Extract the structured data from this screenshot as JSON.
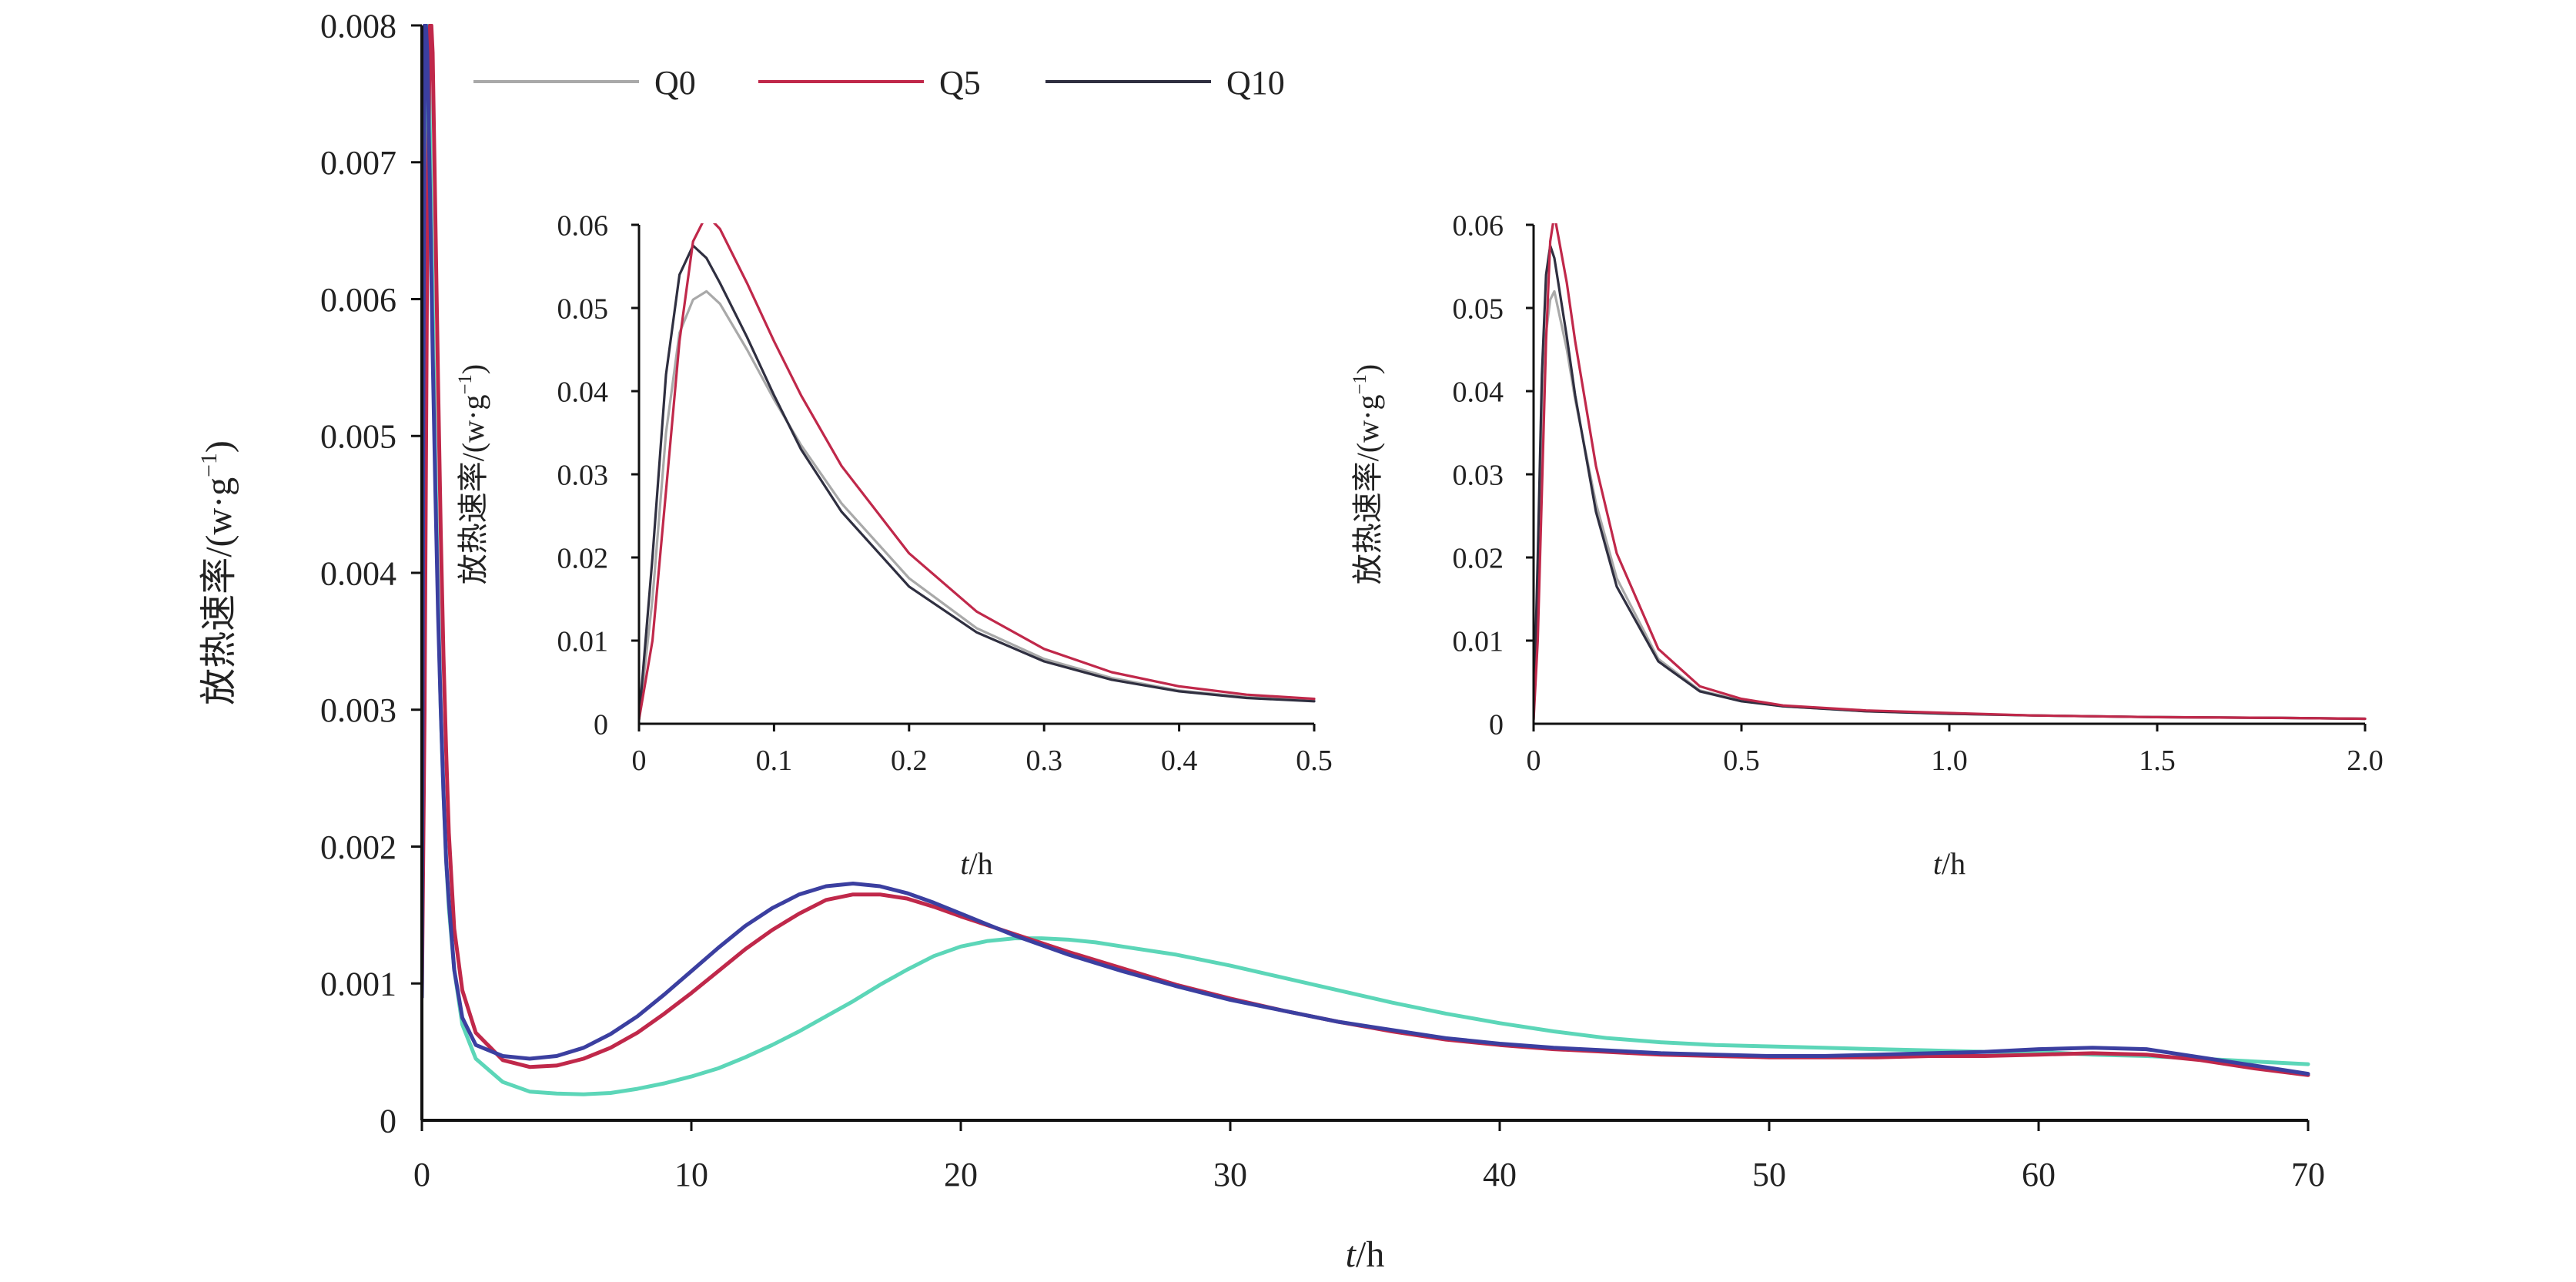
{
  "colors": {
    "Q0": "#a9a9a9",
    "Q0_main": "#5cd6b8",
    "Q5": "#c0284a",
    "Q10": "#2f2f40",
    "Q10_main": "#3b3fa0",
    "axis": "#111111"
  },
  "chart_data": [
    {
      "type": "line",
      "name": "main",
      "title": "",
      "xlabel_italic": "t",
      "xlabel_rest": "/h",
      "ylabel_main": "放热速率/(w·g",
      "ylabel_sup": "−1",
      "ylabel_close": ")",
      "xlim": [
        0,
        70
      ],
      "ylim": [
        0,
        0.008
      ],
      "xticks": [
        0,
        10,
        20,
        30,
        40,
        50,
        60,
        70
      ],
      "xtick_labels": [
        "0",
        "10",
        "20",
        "30",
        "40",
        "50",
        "60",
        "70"
      ],
      "yticks": [
        0,
        0.001,
        0.002,
        0.003,
        0.004,
        0.005,
        0.006,
        0.007,
        0.008
      ],
      "ytick_labels": [
        "0",
        "0.001",
        "0.002",
        "0.003",
        "0.004",
        "0.005",
        "0.006",
        "0.007",
        "0.008"
      ],
      "legend": {
        "placement": "top",
        "entries": [
          "Q0",
          "Q5",
          "Q10"
        ]
      },
      "series": [
        {
          "name": "Q0",
          "x": [
            0.0,
            0.1,
            0.15,
            0.2,
            0.25,
            0.3,
            0.4,
            0.5,
            0.6,
            0.7,
            0.8,
            0.9,
            1.0,
            1.2,
            1.5,
            2,
            3,
            4,
            5,
            6,
            7,
            8,
            9,
            10,
            11,
            12,
            13,
            14,
            15,
            16,
            17,
            18,
            19,
            20,
            21,
            22,
            23,
            24,
            25,
            26,
            28,
            30,
            32,
            34,
            36,
            38,
            40,
            42,
            44,
            46,
            48,
            50,
            52,
            54,
            56,
            58,
            60,
            62,
            64,
            66,
            68,
            70
          ],
          "y": [
            0.0009,
            0.0045,
            0.008,
            0.008,
            0.0078,
            0.0072,
            0.006,
            0.0048,
            0.0038,
            0.003,
            0.0024,
            0.0019,
            0.00155,
            0.0011,
            0.0007,
            0.00045,
            0.00028,
            0.00021,
            0.000195,
            0.00019,
            0.0002,
            0.00023,
            0.00027,
            0.00032,
            0.00038,
            0.00046,
            0.00055,
            0.00065,
            0.00076,
            0.00087,
            0.00099,
            0.0011,
            0.0012,
            0.00127,
            0.00131,
            0.00133,
            0.00133,
            0.00132,
            0.0013,
            0.00127,
            0.00121,
            0.00113,
            0.00104,
            0.00095,
            0.00086,
            0.00078,
            0.00071,
            0.00065,
            0.0006,
            0.00057,
            0.00055,
            0.00054,
            0.00053,
            0.00052,
            0.00051,
            0.0005,
            0.0005,
            0.00048,
            0.00047,
            0.00045,
            0.00043,
            0.00041
          ]
        },
        {
          "name": "Q5",
          "x": [
            0.0,
            0.1,
            0.2,
            0.3,
            0.35,
            0.4,
            0.5,
            0.6,
            0.7,
            0.8,
            0.9,
            1.0,
            1.2,
            1.5,
            2,
            3,
            4,
            5,
            6,
            7,
            8,
            9,
            10,
            11,
            12,
            13,
            14,
            15,
            16,
            17,
            18,
            19,
            20,
            22,
            24,
            26,
            28,
            30,
            32,
            34,
            36,
            38,
            40,
            42,
            44,
            46,
            48,
            50,
            52,
            54,
            56,
            58,
            60,
            62,
            64,
            66,
            68,
            70
          ],
          "y": [
            0.0009,
            0.003,
            0.0065,
            0.008,
            0.008,
            0.0078,
            0.0066,
            0.0054,
            0.0043,
            0.0034,
            0.0027,
            0.0021,
            0.0014,
            0.00095,
            0.00064,
            0.00044,
            0.00039,
            0.0004,
            0.00045,
            0.00053,
            0.00064,
            0.00078,
            0.00093,
            0.00109,
            0.00125,
            0.00139,
            0.00151,
            0.00161,
            0.00165,
            0.00165,
            0.00162,
            0.00156,
            0.00149,
            0.00136,
            0.00123,
            0.00111,
            0.00099,
            0.00089,
            0.0008,
            0.00072,
            0.00065,
            0.00059,
            0.00055,
            0.00052,
            0.0005,
            0.00048,
            0.00047,
            0.00046,
            0.00046,
            0.00046,
            0.00047,
            0.00047,
            0.00048,
            0.00049,
            0.00048,
            0.00044,
            0.00038,
            0.00033
          ]
        },
        {
          "name": "Q10",
          "x": [
            0.0,
            0.05,
            0.1,
            0.15,
            0.2,
            0.3,
            0.4,
            0.5,
            0.6,
            0.7,
            0.8,
            0.9,
            1.0,
            1.2,
            1.5,
            2,
            3,
            4,
            5,
            6,
            7,
            8,
            9,
            10,
            11,
            12,
            13,
            14,
            15,
            16,
            17,
            18,
            19,
            20,
            22,
            24,
            26,
            28,
            30,
            32,
            34,
            36,
            38,
            40,
            42,
            44,
            46,
            48,
            50,
            52,
            54,
            56,
            58,
            60,
            62,
            64,
            66,
            68,
            70
          ],
          "y": [
            0.0009,
            0.005,
            0.008,
            0.008,
            0.0078,
            0.0068,
            0.0056,
            0.0046,
            0.0037,
            0.003,
            0.0024,
            0.0019,
            0.0016,
            0.0011,
            0.00075,
            0.00055,
            0.00047,
            0.00045,
            0.00047,
            0.00053,
            0.00063,
            0.00076,
            0.00092,
            0.00109,
            0.00126,
            0.00142,
            0.00155,
            0.00165,
            0.00171,
            0.00173,
            0.00171,
            0.00166,
            0.00159,
            0.00151,
            0.00135,
            0.00121,
            0.00109,
            0.00098,
            0.00088,
            0.0008,
            0.00072,
            0.00066,
            0.0006,
            0.00056,
            0.00053,
            0.00051,
            0.00049,
            0.00048,
            0.00047,
            0.00047,
            0.00048,
            0.00049,
            0.0005,
            0.00052,
            0.00053,
            0.00052,
            0.00046,
            0.0004,
            0.00034
          ]
        }
      ]
    },
    {
      "type": "line",
      "name": "inset-left",
      "title": "",
      "xlabel_italic": "t",
      "xlabel_rest": "/h",
      "ylabel_main": "放热速率/(w·g",
      "ylabel_sup": "−1",
      "ylabel_close": ")",
      "xlim": [
        0,
        0.5
      ],
      "ylim": [
        0,
        0.06
      ],
      "xticks": [
        0,
        0.1,
        0.2,
        0.3,
        0.4,
        0.5
      ],
      "xtick_labels": [
        "0",
        "0.1",
        "0.2",
        "0.3",
        "0.4",
        "0.5"
      ],
      "yticks": [
        0,
        0.01,
        0.02,
        0.03,
        0.04,
        0.05,
        0.06
      ],
      "ytick_labels": [
        "0",
        "0.01",
        "0.02",
        "0.03",
        "0.04",
        "0.05",
        "0.06"
      ],
      "series": [
        {
          "name": "Q0",
          "x": [
            0,
            0.01,
            0.02,
            0.03,
            0.04,
            0.05,
            0.06,
            0.08,
            0.1,
            0.12,
            0.15,
            0.2,
            0.25,
            0.3,
            0.35,
            0.4,
            0.45,
            0.5
          ],
          "y": [
            0.0005,
            0.015,
            0.035,
            0.047,
            0.051,
            0.052,
            0.0505,
            0.045,
            0.039,
            0.0335,
            0.0265,
            0.0175,
            0.0115,
            0.0078,
            0.0055,
            0.004,
            0.0032,
            0.0028
          ]
        },
        {
          "name": "Q5",
          "x": [
            0,
            0.01,
            0.02,
            0.03,
            0.04,
            0.05,
            0.06,
            0.08,
            0.1,
            0.12,
            0.15,
            0.2,
            0.25,
            0.3,
            0.35,
            0.4,
            0.45,
            0.5
          ],
          "y": [
            0.0005,
            0.01,
            0.028,
            0.046,
            0.058,
            0.0612,
            0.0595,
            0.053,
            0.046,
            0.0395,
            0.031,
            0.0205,
            0.0135,
            0.009,
            0.0062,
            0.0045,
            0.0035,
            0.003
          ]
        },
        {
          "name": "Q10",
          "x": [
            0,
            0.01,
            0.02,
            0.03,
            0.04,
            0.05,
            0.06,
            0.08,
            0.1,
            0.12,
            0.15,
            0.2,
            0.25,
            0.3,
            0.35,
            0.4,
            0.45,
            0.5
          ],
          "y": [
            0.0005,
            0.02,
            0.042,
            0.054,
            0.0575,
            0.056,
            0.053,
            0.0465,
            0.0395,
            0.033,
            0.0255,
            0.0165,
            0.011,
            0.0075,
            0.0053,
            0.0039,
            0.0031,
            0.0027
          ]
        }
      ]
    },
    {
      "type": "line",
      "name": "inset-right",
      "title": "",
      "xlabel_italic": "t",
      "xlabel_rest": "/h",
      "ylabel_main": "放热速率/(w·g",
      "ylabel_sup": "−1",
      "ylabel_close": ")",
      "xlim": [
        0,
        2.0
      ],
      "ylim": [
        0,
        0.06
      ],
      "xticks": [
        0,
        0.5,
        1.0,
        1.5,
        2.0
      ],
      "xtick_labels": [
        "0",
        "0.5",
        "1.0",
        "1.5",
        "2.0"
      ],
      "yticks": [
        0,
        0.01,
        0.02,
        0.03,
        0.04,
        0.05,
        0.06
      ],
      "ytick_labels": [
        "0",
        "0.01",
        "0.02",
        "0.03",
        "0.04",
        "0.05",
        "0.06"
      ],
      "series": [
        {
          "name": "Q0",
          "x": [
            0,
            0.01,
            0.02,
            0.03,
            0.04,
            0.05,
            0.08,
            0.1,
            0.15,
            0.2,
            0.3,
            0.4,
            0.5,
            0.6,
            0.8,
            1.0,
            1.2,
            1.5,
            1.8,
            2.0
          ],
          "y": [
            0.0005,
            0.015,
            0.035,
            0.047,
            0.051,
            0.052,
            0.045,
            0.039,
            0.0265,
            0.0175,
            0.0078,
            0.004,
            0.0028,
            0.0021,
            0.0015,
            0.0012,
            0.001,
            0.0008,
            0.0007,
            0.0006
          ]
        },
        {
          "name": "Q5",
          "x": [
            0,
            0.01,
            0.02,
            0.03,
            0.04,
            0.05,
            0.08,
            0.1,
            0.15,
            0.2,
            0.3,
            0.4,
            0.5,
            0.6,
            0.8,
            1.0,
            1.2,
            1.5,
            1.8,
            2.0
          ],
          "y": [
            0.0005,
            0.01,
            0.028,
            0.046,
            0.058,
            0.0612,
            0.053,
            0.046,
            0.031,
            0.0205,
            0.009,
            0.0045,
            0.003,
            0.0022,
            0.0016,
            0.0013,
            0.001,
            0.0008,
            0.0007,
            0.0006
          ]
        },
        {
          "name": "Q10",
          "x": [
            0,
            0.01,
            0.02,
            0.03,
            0.04,
            0.05,
            0.08,
            0.1,
            0.15,
            0.2,
            0.3,
            0.4,
            0.5,
            0.6,
            0.8,
            1.0,
            1.2,
            1.5,
            1.8,
            2.0
          ],
          "y": [
            0.0005,
            0.02,
            0.042,
            0.054,
            0.0575,
            0.056,
            0.0465,
            0.0395,
            0.0255,
            0.0165,
            0.0075,
            0.0039,
            0.0027,
            0.0021,
            0.0015,
            0.0012,
            0.001,
            0.0008,
            0.0007,
            0.0006
          ]
        }
      ]
    }
  ]
}
